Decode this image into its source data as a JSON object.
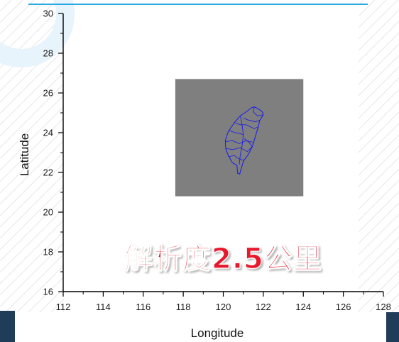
{
  "slide": {
    "banner_text": "解析度2.5公里",
    "accent_color": "#29a9e1",
    "banner_color": "#e8192c",
    "side_tab_color": "#1f3c59"
  },
  "chart_data": {
    "type": "map",
    "xlabel": "Longitude",
    "ylabel": "Latitude",
    "xlim": [
      112,
      128
    ],
    "ylim": [
      16,
      30
    ],
    "x_ticks": [
      "112",
      "114",
      "116",
      "118",
      "120",
      "122",
      "124",
      "126",
      "128"
    ],
    "y_ticks": [
      "16",
      "18",
      "20",
      "22",
      "24",
      "26",
      "28",
      "30"
    ],
    "domain_box": {
      "lon_min": 117.6,
      "lon_max": 124.0,
      "lat_min": 20.8,
      "lat_max": 26.7,
      "fill": "#7f7f7f"
    },
    "island_outline_color": "#1e22e6",
    "island": [
      [
        121.55,
        25.3
      ],
      [
        121.75,
        25.2
      ],
      [
        121.95,
        25.05
      ],
      [
        122.0,
        24.9
      ],
      [
        121.82,
        24.62
      ],
      [
        121.75,
        24.3
      ],
      [
        121.6,
        23.8
      ],
      [
        121.45,
        23.3
      ],
      [
        121.25,
        22.9
      ],
      [
        121.02,
        22.6
      ],
      [
        120.92,
        22.28
      ],
      [
        120.82,
        21.92
      ],
      [
        120.72,
        21.95
      ],
      [
        120.68,
        22.35
      ],
      [
        120.45,
        22.5
      ],
      [
        120.25,
        22.85
      ],
      [
        120.12,
        23.2
      ],
      [
        120.1,
        23.6
      ],
      [
        120.25,
        24.05
      ],
      [
        120.55,
        24.5
      ],
      [
        120.85,
        24.85
      ],
      [
        121.15,
        25.05
      ],
      [
        121.4,
        25.25
      ]
    ],
    "boundaries": [
      [
        [
          121.0,
          24.75
        ],
        [
          121.2,
          24.65
        ],
        [
          121.6,
          24.55
        ],
        [
          121.82,
          24.62
        ]
      ],
      [
        [
          120.55,
          24.5
        ],
        [
          120.85,
          24.4
        ],
        [
          121.15,
          24.4
        ],
        [
          121.55,
          24.2
        ],
        [
          121.75,
          24.3
        ]
      ],
      [
        [
          120.3,
          24.1
        ],
        [
          120.6,
          24.0
        ],
        [
          120.85,
          23.95
        ],
        [
          121.0,
          23.9
        ]
      ],
      [
        [
          120.12,
          23.55
        ],
        [
          120.45,
          23.6
        ],
        [
          120.8,
          23.45
        ],
        [
          121.15,
          23.6
        ],
        [
          121.55,
          23.5
        ]
      ],
      [
        [
          120.15,
          23.2
        ],
        [
          120.5,
          23.15
        ],
        [
          120.85,
          23.25
        ],
        [
          121.2,
          23.05
        ],
        [
          121.45,
          23.3
        ]
      ],
      [
        [
          120.3,
          22.8
        ],
        [
          120.55,
          22.85
        ],
        [
          120.75,
          22.7
        ],
        [
          121.02,
          22.6
        ]
      ],
      [
        [
          120.85,
          24.85
        ],
        [
          120.95,
          24.3
        ],
        [
          121.0,
          23.9
        ],
        [
          120.95,
          23.4
        ],
        [
          120.85,
          22.9
        ],
        [
          120.8,
          22.4
        ]
      ],
      [
        [
          121.55,
          25.3
        ],
        [
          121.5,
          25.05
        ],
        [
          121.7,
          24.85
        ],
        [
          122.0,
          24.9
        ]
      ],
      [
        [
          121.45,
          23.3
        ],
        [
          121.3,
          23.5
        ],
        [
          121.05,
          23.7
        ]
      ]
    ]
  }
}
